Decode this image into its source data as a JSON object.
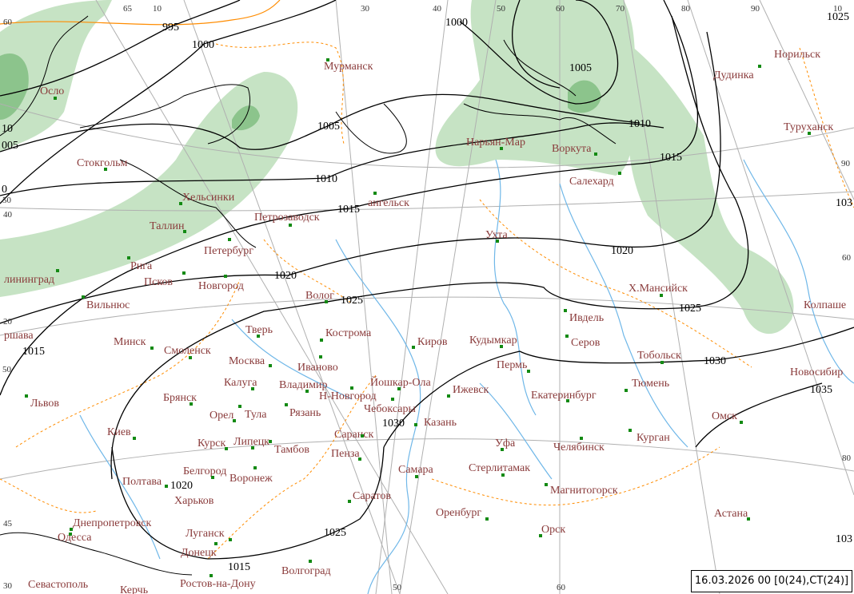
{
  "map": {
    "timestamp": "16.03.2026 00 [0(24),CT(24)]",
    "colors": {
      "isobar": "#000000",
      "border": "#ff8c00",
      "river": "#6fb7e8",
      "grid": "#b0b0b0",
      "precip_light": "#c6e3c4",
      "precip_heavy": "#8cc48c",
      "city_label": "#8a3b3b",
      "city_marker": "#138a13"
    },
    "cities": [
      "Осло",
      "Стокгольм",
      "Хельсинки",
      "Таллин",
      "Рига",
      "Петербург",
      "Петрозаводск",
      "Мурманск",
      "ангельск",
      "Нарьян-Мар",
      "Воркута",
      "Салехард",
      "Норильск",
      "Дудинка",
      "Туруханск",
      "Ухта",
      "Х.Мансийск",
      "Ивдель",
      "Серов",
      "Тобольск",
      "Колпаше",
      "Новосибир",
      "Омск",
      "Тюмень",
      "Курган",
      "Екатеринбург",
      "Челябинск",
      "Магнитогорск",
      "Орск",
      "Астана",
      "Оренбург",
      "Самара",
      "Стерлитамак",
      "Уфа",
      "Пермь",
      "Кудымкар",
      "Киров",
      "Ижевск",
      "Йошкар-Ола",
      "Чебоксары",
      "Казань",
      "Н-Новгород",
      "Саранск",
      "Пенза",
      "Саратов",
      "Волгоград",
      "Волог",
      "Кострома",
      "Иваново",
      "Владимир",
      "Рязань",
      "Москва",
      "Тверь",
      "Смоленск",
      "Калуга",
      "Тула",
      "Орел",
      "Брянск",
      "Курск",
      "Липецк",
      "Тамбов",
      "Воронеж",
      "Белгород",
      "Харьков",
      "Полтава",
      "Киев",
      "Львов",
      "Минск",
      "Вильнюс",
      "Псков",
      "Новгород",
      "лининград",
      "ршава",
      "Днепропетровск",
      "Одесса",
      "Луганск",
      "Донецк",
      "Севастополь",
      "Керчь",
      "Ростов-на-Дону"
    ],
    "isobar_labels": [
      "995",
      "1000",
      "1000",
      "1005",
      "1010",
      "1015",
      "1005",
      "1010",
      "1015",
      "1020",
      "1020",
      "1025",
      "1025",
      "1025",
      "1030",
      "1030",
      "1035",
      "1015",
      "1020",
      "1025",
      "1015",
      "005",
      "10",
      "0",
      "103",
      "103"
    ],
    "grid_labels": [
      "60",
      "65",
      "10",
      "30",
      "40",
      "50",
      "60",
      "70",
      "80",
      "90",
      "10",
      "90",
      "60",
      "80",
      "50",
      "45",
      "20",
      "50",
      "40",
      "30",
      "50",
      "60"
    ]
  }
}
